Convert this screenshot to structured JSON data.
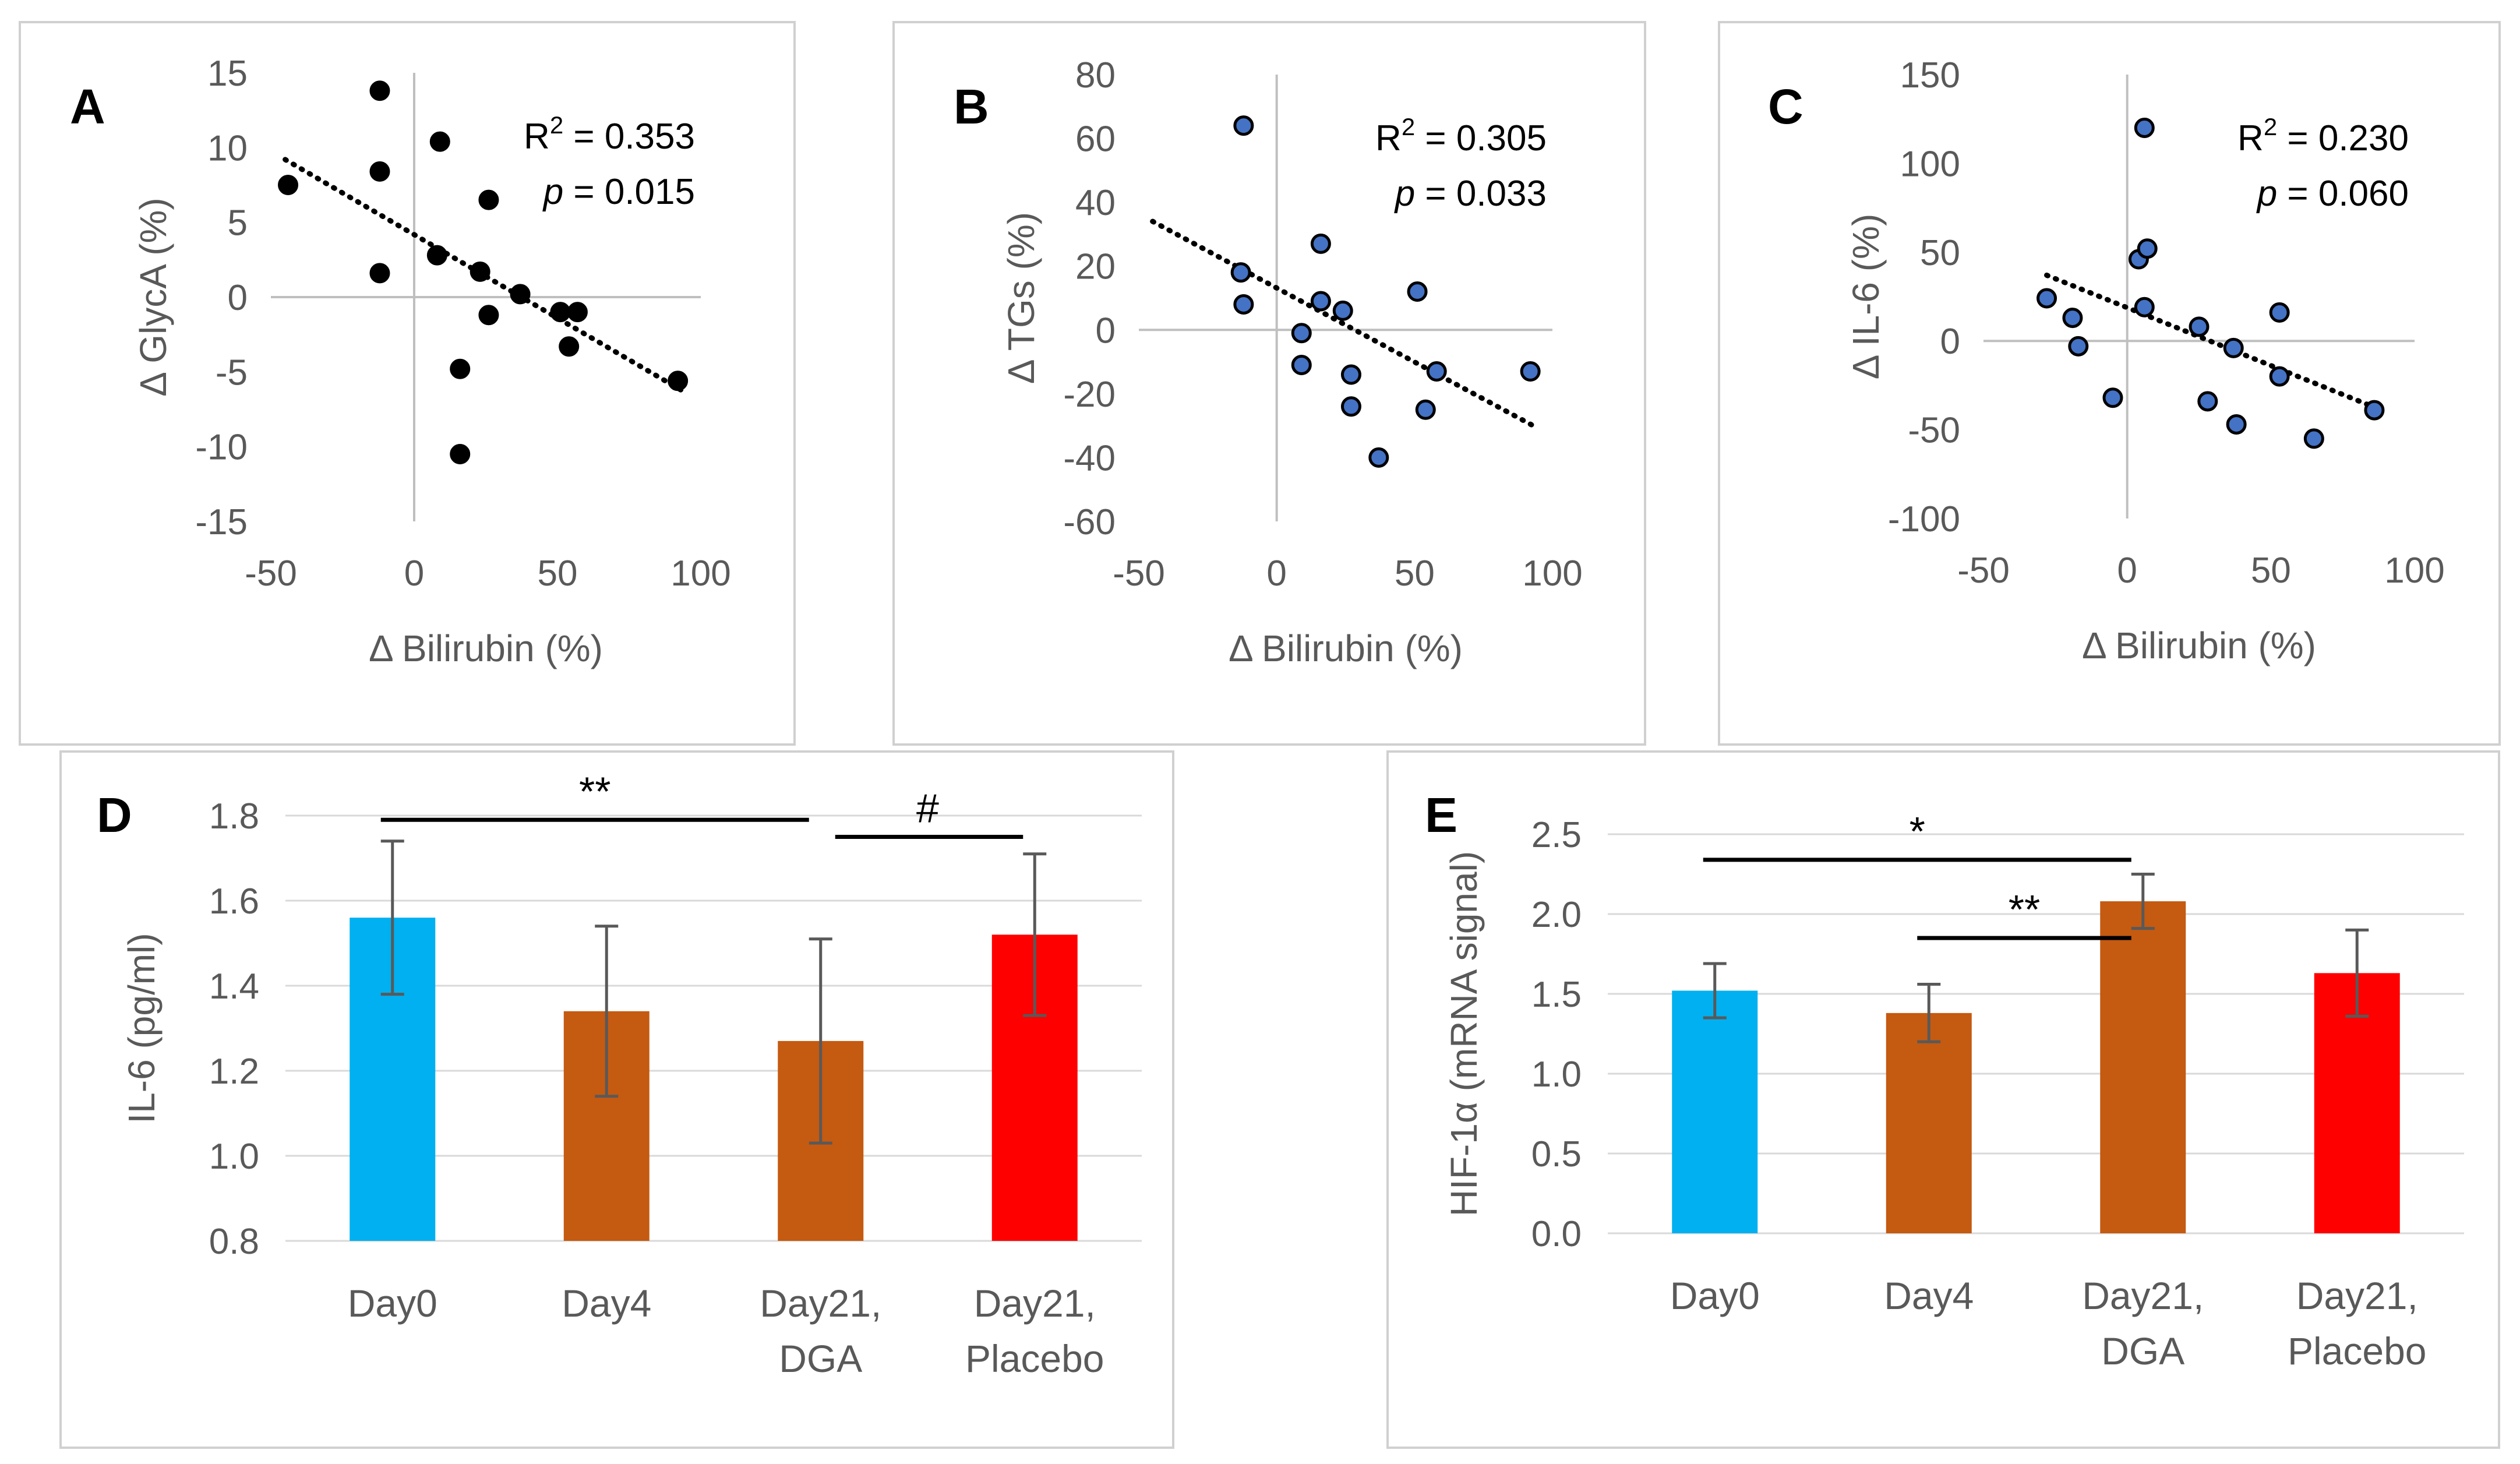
{
  "colors": {
    "scatter_black": "#000000",
    "scatter_blue": "#4472c4",
    "bar_day0": "#00b0f0",
    "bar_dga": "#c55a11",
    "bar_placebo": "#ff0000",
    "error_bar": "#595959"
  },
  "chart_data": [
    {
      "panel": "A",
      "type": "scatter",
      "xlabel": "Δ Bilirubin (%)",
      "ylabel": "Δ GlycA (%)",
      "xlim": [
        -50,
        100
      ],
      "ylim": [
        -15,
        15
      ],
      "xticks": [
        -50,
        0,
        50,
        100
      ],
      "yticks": [
        -15,
        -10,
        -5,
        0,
        5,
        10,
        15
      ],
      "x_tick_labels": [
        "-50",
        "0",
        "50",
        "100"
      ],
      "y_tick_labels": [
        "-15",
        "-10",
        "-5",
        "0",
        "5",
        "10",
        "15"
      ],
      "marker_color": "#000000",
      "marker_edge": "#000000",
      "stat_r2_label": "R",
      "stat_r2_sup": "2",
      "stat_r2_value": " = 0.353",
      "stat_p_label": "p",
      "stat_p_value": " = 0.015",
      "trendline": {
        "x": [
          -45,
          93
        ],
        "y": [
          9.2,
          -6.2
        ]
      },
      "points": [
        {
          "x": -44,
          "y": 7.5
        },
        {
          "x": -12,
          "y": 13.8
        },
        {
          "x": -12,
          "y": 8.4
        },
        {
          "x": -12,
          "y": 1.6
        },
        {
          "x": 9,
          "y": 10.4
        },
        {
          "x": 8,
          "y": 2.8
        },
        {
          "x": 23,
          "y": 1.7
        },
        {
          "x": 26,
          "y": 6.5
        },
        {
          "x": 26,
          "y": -1.2
        },
        {
          "x": 16,
          "y": -4.8
        },
        {
          "x": 16,
          "y": -10.5
        },
        {
          "x": 37,
          "y": 0.2
        },
        {
          "x": 51,
          "y": -1.0
        },
        {
          "x": 57,
          "y": -1.0
        },
        {
          "x": 54,
          "y": -3.3
        },
        {
          "x": 92,
          "y": -5.6
        }
      ]
    },
    {
      "panel": "B",
      "type": "scatter",
      "xlabel": "Δ Bilirubin (%)",
      "ylabel": "Δ TGs (%)",
      "xlim": [
        -50,
        100
      ],
      "ylim": [
        -60,
        80
      ],
      "xticks": [
        -50,
        0,
        50,
        100
      ],
      "yticks": [
        -60,
        -40,
        -20,
        0,
        20,
        40,
        60,
        80
      ],
      "x_tick_labels": [
        "-50",
        "0",
        "50",
        "100"
      ],
      "y_tick_labels": [
        "-60",
        "-40",
        "-20",
        "0",
        "20",
        "40",
        "60",
        "80"
      ],
      "marker_color": "#4472c4",
      "marker_edge": "#000000",
      "stat_r2_label": "R",
      "stat_r2_sup": "2",
      "stat_r2_value": " = 0.305",
      "stat_p_label": "p",
      "stat_p_value": " = 0.033",
      "trendline": {
        "x": [
          -45,
          93
        ],
        "y": [
          34,
          -30
        ]
      },
      "points": [
        {
          "x": -12,
          "y": 64
        },
        {
          "x": -13,
          "y": 18
        },
        {
          "x": -12,
          "y": 8
        },
        {
          "x": 16,
          "y": 27
        },
        {
          "x": 16,
          "y": 9
        },
        {
          "x": 24,
          "y": 6
        },
        {
          "x": 9,
          "y": -1
        },
        {
          "x": 9,
          "y": -11
        },
        {
          "x": 27,
          "y": -14
        },
        {
          "x": 27,
          "y": -24
        },
        {
          "x": 51,
          "y": 12
        },
        {
          "x": 58,
          "y": -13
        },
        {
          "x": 54,
          "y": -25
        },
        {
          "x": 37,
          "y": -40
        },
        {
          "x": 92,
          "y": -13
        }
      ]
    },
    {
      "panel": "C",
      "type": "scatter",
      "xlabel": "Δ Bilirubin (%)",
      "ylabel": "Δ IL-6 (%)",
      "xlim": [
        -50,
        100
      ],
      "ylim": [
        -100,
        150
      ],
      "xticks": [
        -50,
        0,
        50,
        100
      ],
      "yticks": [
        -100,
        -50,
        0,
        50,
        100,
        150
      ],
      "x_tick_labels": [
        "-50",
        "0",
        "50",
        "100"
      ],
      "y_tick_labels": [
        "-100",
        "-50",
        "0",
        "50",
        "100",
        "150"
      ],
      "marker_color": "#4472c4",
      "marker_edge": "#000000",
      "stat_r2_label": "R",
      "stat_r2_sup": "2",
      "stat_r2_value": " = 0.230",
      "stat_p_label": "p",
      "stat_p_value": " = 0.060",
      "trendline": {
        "x": [
          -28,
          87
        ],
        "y": [
          37,
          -38
        ]
      },
      "points": [
        {
          "x": -28,
          "y": 24
        },
        {
          "x": -19,
          "y": 13
        },
        {
          "x": -17,
          "y": -3
        },
        {
          "x": -5,
          "y": -32
        },
        {
          "x": 6,
          "y": 120
        },
        {
          "x": 4,
          "y": 46
        },
        {
          "x": 7,
          "y": 52
        },
        {
          "x": 6,
          "y": 19
        },
        {
          "x": 25,
          "y": 8
        },
        {
          "x": 28,
          "y": -34
        },
        {
          "x": 37,
          "y": -4
        },
        {
          "x": 38,
          "y": -47
        },
        {
          "x": 53,
          "y": 16
        },
        {
          "x": 53,
          "y": -20
        },
        {
          "x": 65,
          "y": -55
        },
        {
          "x": 86,
          "y": -39
        }
      ]
    },
    {
      "panel": "D",
      "type": "bar",
      "ylabel": "IL-6 (pg/ml)",
      "ylim": [
        0.8,
        1.8
      ],
      "yticks": [
        0.8,
        1.0,
        1.2,
        1.4,
        1.6,
        1.8
      ],
      "y_tick_labels": [
        "0.8",
        "1.0",
        "1.2",
        "1.4",
        "1.6",
        "1.8"
      ],
      "categories": [
        [
          "Day0"
        ],
        [
          "Day4"
        ],
        [
          "Day21,",
          "DGA"
        ],
        [
          "Day21,",
          "Placebo"
        ]
      ],
      "values": [
        1.56,
        1.34,
        1.27,
        1.52
      ],
      "errors": [
        0.18,
        0.2,
        0.24,
        0.19
      ],
      "bar_colors": [
        "#00b0f0",
        "#c55a11",
        "#c55a11",
        "#ff0000"
      ],
      "significance": [
        {
          "from": 0,
          "to": 2,
          "label": "**",
          "y": 1.79
        },
        {
          "from": 2,
          "to": 3,
          "label": "#",
          "y": 1.75
        }
      ]
    },
    {
      "panel": "E",
      "type": "bar",
      "ylabel": "HIF-1α (mRNA signal)",
      "ylim": [
        0.0,
        2.5
      ],
      "yticks": [
        0.0,
        0.5,
        1.0,
        1.5,
        2.0,
        2.5
      ],
      "y_tick_labels": [
        "0.0",
        "0.5",
        "1.0",
        "1.5",
        "2.0",
        "2.5"
      ],
      "categories": [
        [
          "Day0"
        ],
        [
          "Day4"
        ],
        [
          "Day21,",
          "DGA"
        ],
        [
          "Day21,",
          "Placebo"
        ]
      ],
      "values": [
        1.52,
        1.38,
        2.08,
        1.63
      ],
      "errors": [
        0.17,
        0.18,
        0.17,
        0.27
      ],
      "bar_colors": [
        "#00b0f0",
        "#c55a11",
        "#c55a11",
        "#ff0000"
      ],
      "significance": [
        {
          "from": 0,
          "to": 2,
          "label": "*",
          "y": 2.34
        },
        {
          "from": 1,
          "to": 2,
          "label": "**",
          "y": 1.85
        }
      ]
    }
  ]
}
